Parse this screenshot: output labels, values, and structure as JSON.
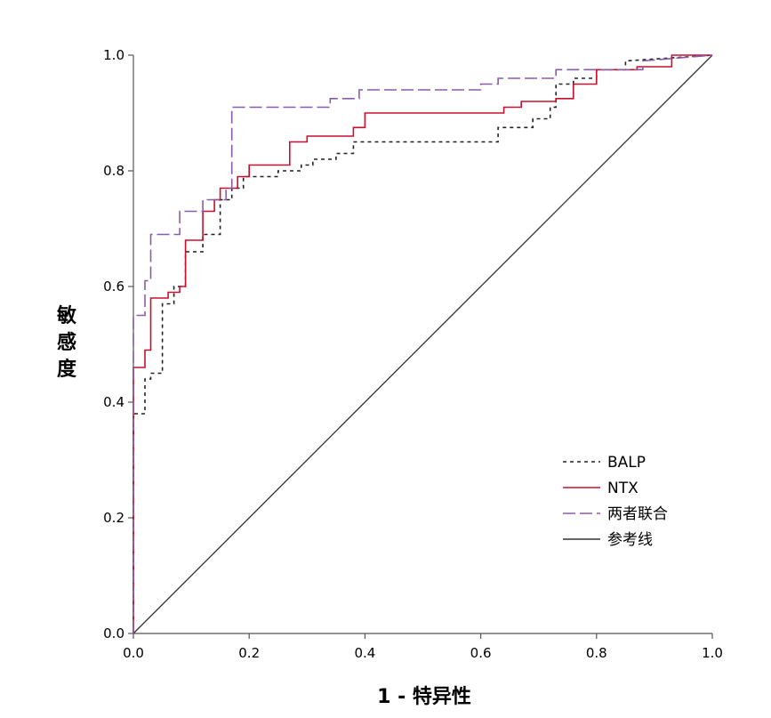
{
  "chart_data": {
    "type": "line",
    "title": "",
    "xlabel": "1 - 特异性",
    "ylabel_chars": [
      "敏",
      "感",
      "度"
    ],
    "xlim": [
      0,
      1
    ],
    "ylim": [
      0,
      1
    ],
    "x_ticks": [
      "0.0",
      "0.2",
      "0.4",
      "0.6",
      "0.8",
      "1.0"
    ],
    "y_ticks": [
      "0.0",
      "0.2",
      "0.4",
      "0.6",
      "0.8",
      "1.0"
    ],
    "legend_position": "bottom-right",
    "series": [
      {
        "name": "BALP",
        "color": "#222222",
        "dash": "short-dash",
        "points": [
          [
            0,
            0
          ],
          [
            0,
            0.38
          ],
          [
            0.02,
            0.38
          ],
          [
            0.02,
            0.44
          ],
          [
            0.03,
            0.44
          ],
          [
            0.03,
            0.45
          ],
          [
            0.05,
            0.45
          ],
          [
            0.05,
            0.57
          ],
          [
            0.07,
            0.57
          ],
          [
            0.07,
            0.6
          ],
          [
            0.09,
            0.6
          ],
          [
            0.09,
            0.66
          ],
          [
            0.12,
            0.66
          ],
          [
            0.12,
            0.69
          ],
          [
            0.15,
            0.69
          ],
          [
            0.15,
            0.75
          ],
          [
            0.17,
            0.75
          ],
          [
            0.17,
            0.77
          ],
          [
            0.19,
            0.77
          ],
          [
            0.19,
            0.79
          ],
          [
            0.25,
            0.79
          ],
          [
            0.25,
            0.8
          ],
          [
            0.29,
            0.8
          ],
          [
            0.29,
            0.81
          ],
          [
            0.31,
            0.81
          ],
          [
            0.31,
            0.82
          ],
          [
            0.35,
            0.82
          ],
          [
            0.35,
            0.83
          ],
          [
            0.38,
            0.83
          ],
          [
            0.38,
            0.85
          ],
          [
            0.63,
            0.85
          ],
          [
            0.63,
            0.875
          ],
          [
            0.69,
            0.875
          ],
          [
            0.69,
            0.89
          ],
          [
            0.72,
            0.89
          ],
          [
            0.72,
            0.91
          ],
          [
            0.73,
            0.91
          ],
          [
            0.73,
            0.95
          ],
          [
            0.76,
            0.95
          ],
          [
            0.76,
            0.96
          ],
          [
            0.8,
            0.96
          ],
          [
            0.8,
            0.975
          ],
          [
            0.85,
            0.975
          ],
          [
            0.85,
            0.99
          ],
          [
            1,
            1
          ]
        ]
      },
      {
        "name": "NTX",
        "color": "#c8102e",
        "dash": "solid",
        "points": [
          [
            0,
            0
          ],
          [
            0,
            0.46
          ],
          [
            0.02,
            0.46
          ],
          [
            0.02,
            0.49
          ],
          [
            0.03,
            0.49
          ],
          [
            0.03,
            0.58
          ],
          [
            0.06,
            0.58
          ],
          [
            0.06,
            0.59
          ],
          [
            0.08,
            0.59
          ],
          [
            0.08,
            0.6
          ],
          [
            0.09,
            0.6
          ],
          [
            0.09,
            0.68
          ],
          [
            0.12,
            0.68
          ],
          [
            0.12,
            0.73
          ],
          [
            0.14,
            0.73
          ],
          [
            0.14,
            0.75
          ],
          [
            0.15,
            0.75
          ],
          [
            0.15,
            0.77
          ],
          [
            0.18,
            0.77
          ],
          [
            0.18,
            0.79
          ],
          [
            0.2,
            0.79
          ],
          [
            0.2,
            0.81
          ],
          [
            0.27,
            0.81
          ],
          [
            0.27,
            0.85
          ],
          [
            0.3,
            0.85
          ],
          [
            0.3,
            0.86
          ],
          [
            0.38,
            0.86
          ],
          [
            0.38,
            0.875
          ],
          [
            0.4,
            0.875
          ],
          [
            0.4,
            0.9
          ],
          [
            0.64,
            0.9
          ],
          [
            0.64,
            0.91
          ],
          [
            0.67,
            0.91
          ],
          [
            0.67,
            0.92
          ],
          [
            0.73,
            0.92
          ],
          [
            0.73,
            0.925
          ],
          [
            0.76,
            0.925
          ],
          [
            0.76,
            0.95
          ],
          [
            0.8,
            0.95
          ],
          [
            0.8,
            0.975
          ],
          [
            0.87,
            0.975
          ],
          [
            0.87,
            0.98
          ],
          [
            0.93,
            0.98
          ],
          [
            0.93,
            1
          ],
          [
            1,
            1
          ]
        ]
      },
      {
        "name": "两者联合",
        "color": "#8a5ca8",
        "dash": "long-dash",
        "points": [
          [
            0,
            0
          ],
          [
            0,
            0.55
          ],
          [
            0.02,
            0.55
          ],
          [
            0.02,
            0.61
          ],
          [
            0.03,
            0.61
          ],
          [
            0.03,
            0.69
          ],
          [
            0.08,
            0.69
          ],
          [
            0.08,
            0.73
          ],
          [
            0.12,
            0.73
          ],
          [
            0.12,
            0.75
          ],
          [
            0.16,
            0.75
          ],
          [
            0.16,
            0.77
          ],
          [
            0.17,
            0.77
          ],
          [
            0.17,
            0.91
          ],
          [
            0.34,
            0.91
          ],
          [
            0.34,
            0.925
          ],
          [
            0.39,
            0.925
          ],
          [
            0.39,
            0.94
          ],
          [
            0.6,
            0.94
          ],
          [
            0.6,
            0.95
          ],
          [
            0.63,
            0.95
          ],
          [
            0.63,
            0.96
          ],
          [
            0.73,
            0.96
          ],
          [
            0.73,
            0.975
          ],
          [
            0.88,
            0.975
          ],
          [
            0.88,
            0.99
          ],
          [
            1,
            1
          ]
        ]
      },
      {
        "name": "参考线",
        "color": "#333333",
        "dash": "solid",
        "points": [
          [
            0,
            0
          ],
          [
            1,
            1
          ]
        ]
      }
    ]
  }
}
